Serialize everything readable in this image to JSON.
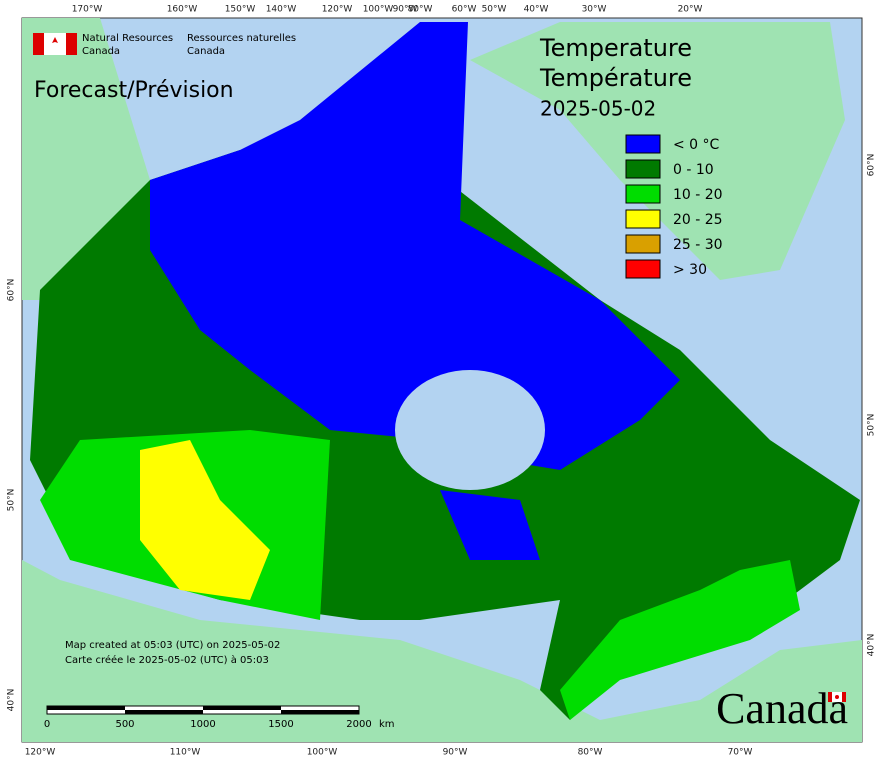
{
  "header": {
    "agency_en": [
      "Natural Resources",
      "Canada"
    ],
    "agency_fr": [
      "Ressources naturelles",
      "Canada"
    ]
  },
  "subtitle": "Forecast/Prévision",
  "title": [
    "Temperature",
    "Température",
    "2025-05-02"
  ],
  "legend": [
    {
      "label": "< 0 °C",
      "color": "#0000ff"
    },
    {
      "label": "0 - 10",
      "color": "#007a00"
    },
    {
      "label": "10 - 20",
      "color": "#00dd00"
    },
    {
      "label": "20 - 25",
      "color": "#ffff00"
    },
    {
      "label": "25 - 30",
      "color": "#d9a000"
    },
    {
      "label": "> 30",
      "color": "#ff0000"
    }
  ],
  "credits": [
    "Map created at 05:03 (UTC) on 2025-05-02",
    "Carte créée le 2025-05-02 (UTC) à 05:03"
  ],
  "scale_bar": {
    "labels": [
      "0",
      "500",
      "1000",
      "1500",
      "2000"
    ],
    "unit": "km"
  },
  "graticule": {
    "top": [
      "170°W",
      "160°W",
      "150°W",
      "140°W",
      "120°W",
      "100°W",
      "90°W",
      "80°W",
      "60°W",
      "50°W",
      "40°W",
      "30°W",
      "20°W"
    ],
    "bottom": [
      "120°W",
      "110°W",
      "100°W",
      "90°W",
      "80°W",
      "70°W"
    ],
    "left": [
      "60°N",
      "50°N",
      "40°N"
    ],
    "right": [
      "60°N",
      "50°N",
      "40°N"
    ]
  },
  "wordmark": "Canada"
}
